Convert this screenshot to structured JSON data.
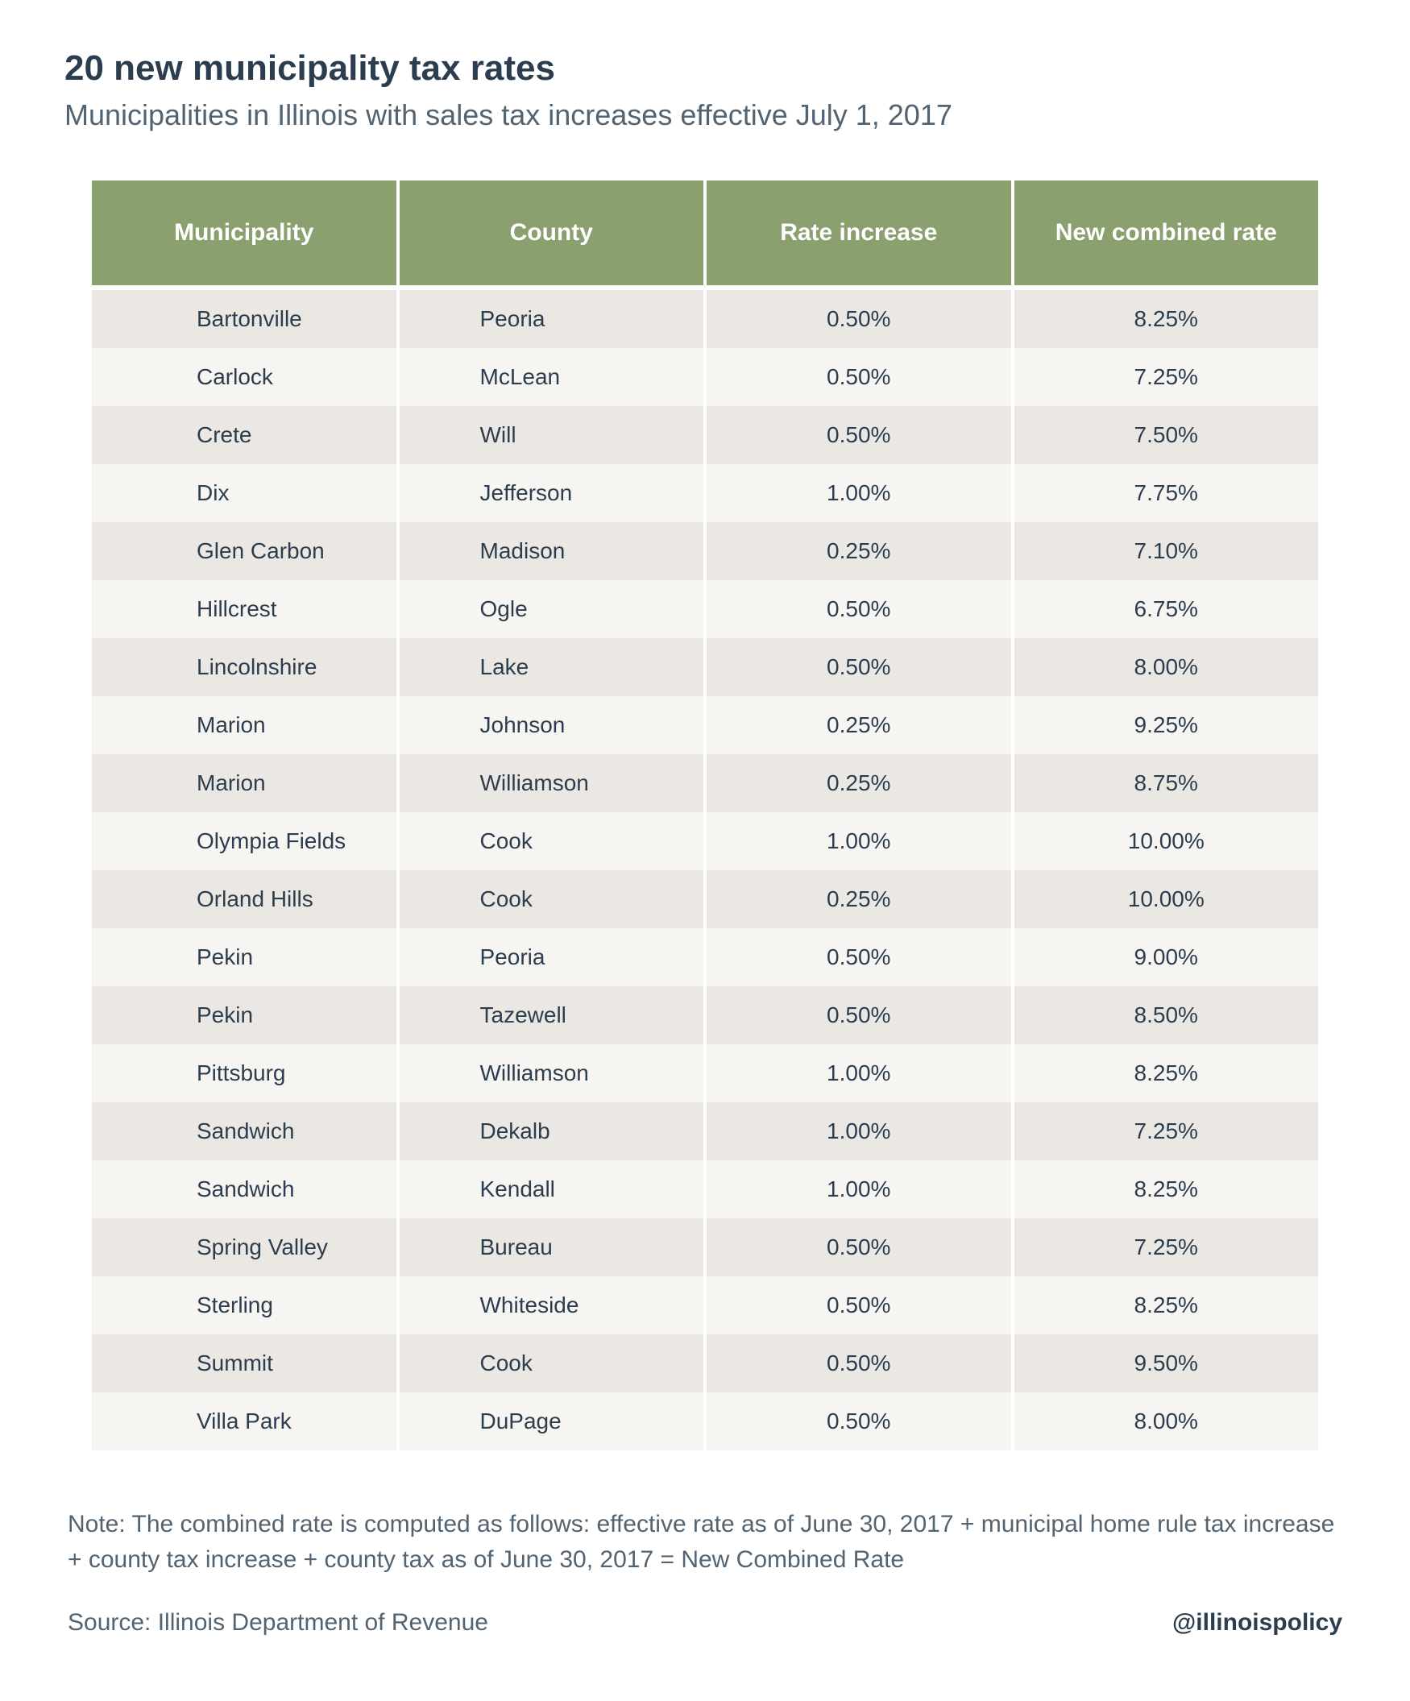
{
  "title": "20 new municipality tax rates",
  "subtitle": "Municipalities in Illinois with sales tax increases effective July 1, 2017",
  "table": {
    "type": "table",
    "header_bg": "#8aa06f",
    "header_fg": "#ffffff",
    "row_odd_bg": "#ebe7e2",
    "row_even_bg": "#f7f5f2",
    "text_color": "#2b3d4f",
    "columns": [
      "Municipality",
      "County",
      "Rate increase",
      "New combined rate"
    ],
    "rows": [
      [
        "Bartonville",
        "Peoria",
        "0.50%",
        "8.25%"
      ],
      [
        "Carlock",
        "McLean",
        "0.50%",
        "7.25%"
      ],
      [
        "Crete",
        "Will",
        "0.50%",
        "7.50%"
      ],
      [
        "Dix",
        "Jefferson",
        "1.00%",
        "7.75%"
      ],
      [
        "Glen Carbon",
        "Madison",
        "0.25%",
        "7.10%"
      ],
      [
        "Hillcrest",
        "Ogle",
        "0.50%",
        "6.75%"
      ],
      [
        "Lincolnshire",
        "Lake",
        "0.50%",
        "8.00%"
      ],
      [
        "Marion",
        "Johnson",
        "0.25%",
        "9.25%"
      ],
      [
        "Marion",
        "Williamson",
        "0.25%",
        "8.75%"
      ],
      [
        "Olympia Fields",
        "Cook",
        "1.00%",
        "10.00%"
      ],
      [
        "Orland Hills",
        "Cook",
        "0.25%",
        "10.00%"
      ],
      [
        "Pekin",
        "Peoria",
        "0.50%",
        "9.00%"
      ],
      [
        "Pekin",
        "Tazewell",
        "0.50%",
        "8.50%"
      ],
      [
        "Pittsburg",
        "Williamson",
        "1.00%",
        "8.25%"
      ],
      [
        "Sandwich",
        "Dekalb",
        "1.00%",
        "7.25%"
      ],
      [
        "Sandwich",
        "Kendall",
        "1.00%",
        "8.25%"
      ],
      [
        "Spring Valley",
        "Bureau",
        "0.50%",
        "7.25%"
      ],
      [
        "Sterling",
        "Whiteside",
        "0.50%",
        "8.25%"
      ],
      [
        "Summit",
        "Cook",
        "0.50%",
        "9.50%"
      ],
      [
        "Villa Park",
        "DuPage",
        "0.50%",
        "8.00%"
      ]
    ]
  },
  "note": "Note: The combined rate is computed as follows: effective rate as of June 30, 2017 + municipal home rule tax increase + county tax increase  + county tax as of June 30, 2017 = New Combined Rate",
  "source": "Source: Illinois Department of Revenue",
  "handle": "@illinoispolicy",
  "colors": {
    "title": "#2b3d4f",
    "subtitle": "#526372",
    "page_bg": "#ffffff"
  },
  "typography": {
    "title_pt": 44,
    "subtitle_pt": 36,
    "header_pt": 30,
    "cell_pt": 28,
    "note_pt": 30
  }
}
